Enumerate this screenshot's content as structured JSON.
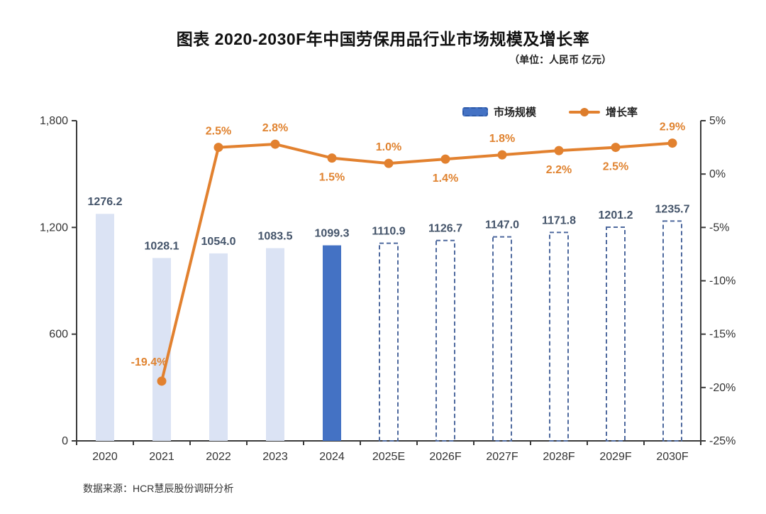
{
  "header": {
    "title": "图表 2020-2030F年中国劳保用品行业市场规模及增长率",
    "unit_note": "（单位：人民币 亿元）"
  },
  "legend": {
    "market_size": "市场规模",
    "growth_rate": "增长率"
  },
  "footer": {
    "source": "数据来源：HCR慧辰股份调研分析"
  },
  "colors": {
    "bar_light": "#dbe3f4",
    "bar_current": "#4472c4",
    "bar_forecast_border": "#4e699e",
    "line": "#e2812f",
    "bar_label": "#44546a",
    "growth_label": "#e08330",
    "axis": "#3a3a3a",
    "tick_label": "#333333"
  },
  "chart_data": {
    "type": "combo: bar + line",
    "title": "图表 2020-2030F年中国劳保用品行业市场规模及增长率",
    "unit": "人民币 亿元",
    "categories": [
      "2020",
      "2021",
      "2022",
      "2023",
      "2024",
      "2025E",
      "2026F",
      "2027F",
      "2028F",
      "2029F",
      "2030F"
    ],
    "series": [
      {
        "name": "市场规模",
        "type": "bar",
        "axis": "left",
        "values": [
          1276.2,
          1028.1,
          1054.0,
          1083.5,
          1099.3,
          1110.9,
          1126.7,
          1147.0,
          1171.8,
          1201.2,
          1235.7
        ],
        "value_labels": [
          "1276.2",
          "1028.1",
          "1054.0",
          "1083.5",
          "1099.3",
          "1110.9",
          "1126.7",
          "1147.0",
          "1171.8",
          "1201.2",
          "1235.7"
        ],
        "bar_styles": [
          "light",
          "light",
          "light",
          "light",
          "solid",
          "dashed",
          "dashed",
          "dashed",
          "dashed",
          "dashed",
          "dashed"
        ]
      },
      {
        "name": "增长率",
        "type": "line",
        "axis": "right",
        "values": [
          null,
          -19.4,
          2.5,
          2.8,
          1.5,
          1.0,
          1.4,
          1.8,
          2.2,
          2.5,
          2.9
        ],
        "value_labels": [
          "",
          "-19.4%",
          "2.5%",
          "2.8%",
          "1.5%",
          "1.0%",
          "1.4%",
          "1.8%",
          "2.2%",
          "2.5%",
          "2.9%"
        ],
        "label_placement": [
          "",
          "upleft",
          "above",
          "above",
          "below",
          "above",
          "below",
          "above",
          "below",
          "below",
          "above"
        ]
      }
    ],
    "left_axis": {
      "ticks": [
        "0",
        "600",
        "1,200",
        "1,800"
      ],
      "tick_values": [
        0,
        600,
        1200,
        1800
      ],
      "range": [
        0,
        1800
      ]
    },
    "right_axis": {
      "ticks": [
        "5%",
        "0%",
        "-5%",
        "-10%",
        "-15%",
        "-20%",
        "-25%"
      ],
      "tick_values": [
        5,
        0,
        -5,
        -10,
        -15,
        -20,
        -25
      ],
      "range": [
        -25,
        5
      ]
    },
    "grid": false,
    "legend_position": "top-center-inside"
  }
}
